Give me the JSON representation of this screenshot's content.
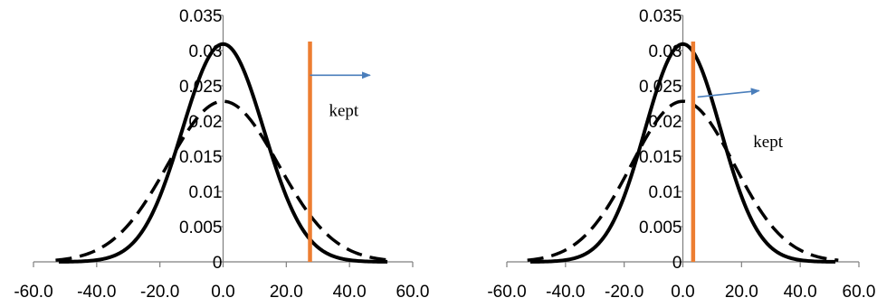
{
  "chart_data": [
    {
      "type": "line",
      "x_ticks": [
        "-60.0",
        "-40.0",
        "-20.0",
        "0.0",
        "20.0",
        "40.0",
        "60.0"
      ],
      "y_ticks": [
        "0",
        "0.005",
        "0.01",
        "0.015",
        "0.02",
        "0.025",
        "0.03",
        "0.035"
      ],
      "xlim": [
        -60,
        60
      ],
      "ylim": [
        0,
        0.035
      ],
      "grid": false,
      "series": [
        {
          "style": "solid",
          "color": "#000000",
          "mean": 0,
          "sd": 12.9,
          "x_range": [
            -52,
            52
          ]
        },
        {
          "style": "dashed",
          "color": "#000000",
          "mean": 0,
          "sd": 17.5,
          "x_range": [
            -53,
            53
          ]
        }
      ],
      "cutoff": {
        "x": 27.5,
        "color": "#ed7d31"
      },
      "annotation": {
        "text": "kept",
        "x": 33.5,
        "y": 0.0207
      },
      "arrow": {
        "from": [
          27.5,
          0.0265
        ],
        "to": [
          46.5,
          0.0265
        ],
        "color": "#4a7ebb"
      }
    },
    {
      "type": "line",
      "x_ticks": [
        "-60.0",
        "-40.0",
        "-20.0",
        "0.0",
        "20.0",
        "40.0",
        "60.0"
      ],
      "y_ticks": [
        "0",
        "0.005",
        "0.01",
        "0.015",
        "0.02",
        "0.025",
        "0.03",
        "0.035"
      ],
      "xlim": [
        -60,
        60
      ],
      "ylim": [
        0,
        0.035
      ],
      "grid": false,
      "series": [
        {
          "style": "solid",
          "color": "#000000",
          "mean": 0,
          "sd": 12.9,
          "x_range": [
            -52,
            52
          ]
        },
        {
          "style": "dashed",
          "color": "#000000",
          "mean": 0,
          "sd": 17.5,
          "x_range": [
            -53,
            53
          ]
        }
      ],
      "cutoff": {
        "x": 3.5,
        "color": "#ed7d31"
      },
      "annotation": {
        "text": "kept",
        "x": 24,
        "y": 0.0163
      },
      "arrow": {
        "from": [
          5,
          0.0234
        ],
        "to": [
          26,
          0.0243
        ],
        "color": "#4a7ebb"
      }
    }
  ]
}
